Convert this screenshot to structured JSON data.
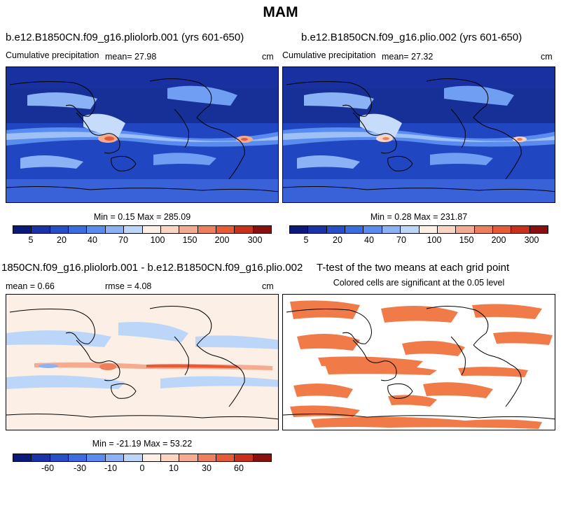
{
  "figure_title": "MAM",
  "panels": [
    {
      "title": "b.e12.B1850CN.f09_g16.pliolorb.001 (yrs 601-650)",
      "left_label": "Cumulative precipitation",
      "mean_label": "mean=  27.98",
      "units": "cm",
      "minmax": "Min =   0.15 Max = 285.09"
    },
    {
      "title": "b.e12.B1850CN.f09_g16.plio.002 (yrs 601-650)",
      "left_label": "Cumulative precipitation",
      "mean_label": "mean=  27.32",
      "units": "cm",
      "minmax": "Min =   0.28 Max = 231.87"
    },
    {
      "title": "1850CN.f09_g16.pliolorb.001 - b.e12.B1850CN.f09_g16.plio.002",
      "left_label": "mean =   0.66",
      "mid_label": "rmse =   4.08",
      "units": "cm",
      "minmax": "Min = -21.19 Max =  53.22"
    },
    {
      "title": "T-test of the two means at each grid point",
      "subtitle": "Colored cells are significant at the 0.05 level"
    }
  ],
  "colorbars": {
    "precip": {
      "colors": [
        "#0a1a7a",
        "#1a33a8",
        "#2550c8",
        "#3a6ee0",
        "#5a8cf0",
        "#8ab2f5",
        "#bcd6fa",
        "#fbefe6",
        "#fbd4c2",
        "#f5ab90",
        "#ee7f5c",
        "#e65a36",
        "#c8301b",
        "#8a1010"
      ],
      "tick_labels": [
        "5",
        "20",
        "40",
        "70",
        "100",
        "150",
        "200",
        "300"
      ]
    },
    "diff": {
      "colors": [
        "#0a1a7a",
        "#1a33a8",
        "#2550c8",
        "#3a6ee0",
        "#5a8cf0",
        "#8ab2f5",
        "#bcd6fa",
        "#fbefe6",
        "#fbd4c2",
        "#f5ab90",
        "#ee7f5c",
        "#e65a36",
        "#c8301b",
        "#8a1010"
      ],
      "tick_labels": [
        "-60",
        "-30",
        "-10",
        "0",
        "10",
        "30",
        "60"
      ]
    }
  },
  "significance_color": "#f07a48"
}
